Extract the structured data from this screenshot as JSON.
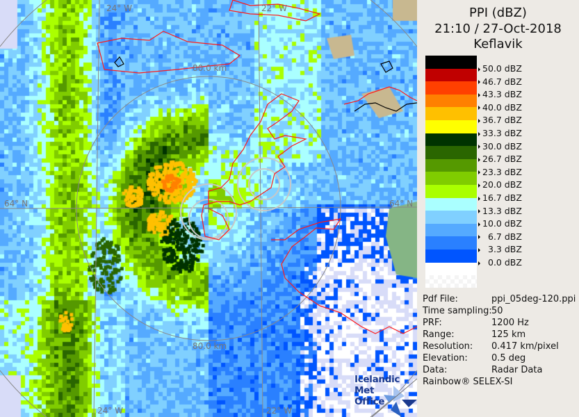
{
  "header": {
    "product": "PPI (dBZ)",
    "datetime": "21:10 / 27-Oct-2018",
    "site": "Keflavik"
  },
  "legend": [
    {
      "label": "50.0 dBZ",
      "color": "#000000"
    },
    {
      "label": "46.7 dBZ",
      "color": "#c00000"
    },
    {
      "label": "43.3 dBZ",
      "color": "#ff4000"
    },
    {
      "label": "40.0 dBZ",
      "color": "#ff8000"
    },
    {
      "label": "36.7 dBZ",
      "color": "#ffc000"
    },
    {
      "label": "33.3 dBZ",
      "color": "#ffff00"
    },
    {
      "label": "30.0 dBZ",
      "color": "#003300"
    },
    {
      "label": "26.7 dBZ",
      "color": "#2a6600"
    },
    {
      "label": "23.3 dBZ",
      "color": "#559900"
    },
    {
      "label": "20.0 dBZ",
      "color": "#80cc00"
    },
    {
      "label": "16.7 dBZ",
      "color": "#aaff00"
    },
    {
      "label": "13.3 dBZ",
      "color": "#aaffff"
    },
    {
      "label": "10.0 dBZ",
      "color": "#80d0ff"
    },
    {
      "label": "6.7 dBZ",
      "color": "#55aaff"
    },
    {
      "label": "3.3 dBZ",
      "color": "#2a80ff"
    },
    {
      "label": "0.0 dBZ",
      "color": "#0055ff"
    }
  ],
  "info": [
    {
      "key": "Pdf File:",
      "value": "ppi_05deg-120.ppi"
    },
    {
      "key": "Time sampling:",
      "value": "50"
    },
    {
      "key": "PRF:",
      "value": "1200 Hz"
    },
    {
      "key": "Range:",
      "value": "125 km"
    },
    {
      "key": "Resolution:",
      "value": "0.417 km/pixel"
    },
    {
      "key": "Elevation:",
      "value": "0.5 deg"
    },
    {
      "key": "Data:",
      "value": "Radar Data"
    }
  ],
  "credit": "Rainbow® SELEX-SI",
  "map": {
    "lon_top_left": "24° W",
    "lon_top_right": "22° W",
    "lon_bottom_left": "24° W",
    "lon_bottom_right": "22° W",
    "lat_left": "64° N",
    "lat_right": "64° N",
    "ring_top": "80.0 km",
    "ring_bottom": "80.0 km",
    "logo_line1": "Icelandic Met",
    "logo_line2": "Office",
    "no_echo_color": "#d8dcf8",
    "coast_color": "#ff0000"
  }
}
